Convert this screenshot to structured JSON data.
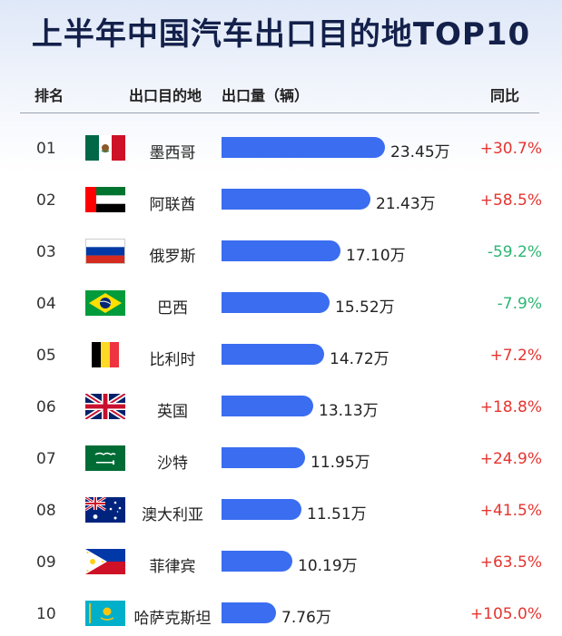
{
  "title": "上半年中国汽车出口目的地TOP10",
  "headers": {
    "rank": "排名",
    "destination": "出口目的地",
    "volume": "出口量（辆）",
    "yoy": "同比"
  },
  "colors": {
    "bar": "#3a6df0",
    "positive": "#e5342f",
    "negative": "#2bb673",
    "title": "#13204a"
  },
  "chart_data": {
    "type": "bar",
    "orientation": "horizontal",
    "unit": "万",
    "categories": [
      "墨西哥",
      "阿联酋",
      "俄罗斯",
      "巴西",
      "比利时",
      "英国",
      "沙特",
      "澳大利亚",
      "菲律宾",
      "哈萨克斯坦"
    ],
    "values": [
      23.45,
      21.43,
      17.1,
      15.52,
      14.72,
      13.13,
      11.95,
      11.51,
      10.19,
      7.76
    ],
    "value_labels": [
      "23.45万",
      "21.43万",
      "17.10万",
      "15.52万",
      "14.72万",
      "13.13万",
      "11.95万",
      "11.51万",
      "10.19万",
      "7.76万"
    ],
    "ranks": [
      "01",
      "02",
      "03",
      "04",
      "05",
      "06",
      "07",
      "08",
      "09",
      "10"
    ],
    "yoy": [
      "+30.7%",
      "+58.5%",
      "-59.2%",
      "-7.9%",
      "+7.2%",
      "+18.8%",
      "+24.9%",
      "+41.5%",
      "+63.5%",
      "+105.0%"
    ],
    "flags": [
      "mexico-flag",
      "uae-flag",
      "russia-flag",
      "brazil-flag",
      "belgium-flag",
      "uk-flag",
      "saudi-flag",
      "australia-flag",
      "philippines-flag",
      "kazakhstan-flag"
    ]
  }
}
